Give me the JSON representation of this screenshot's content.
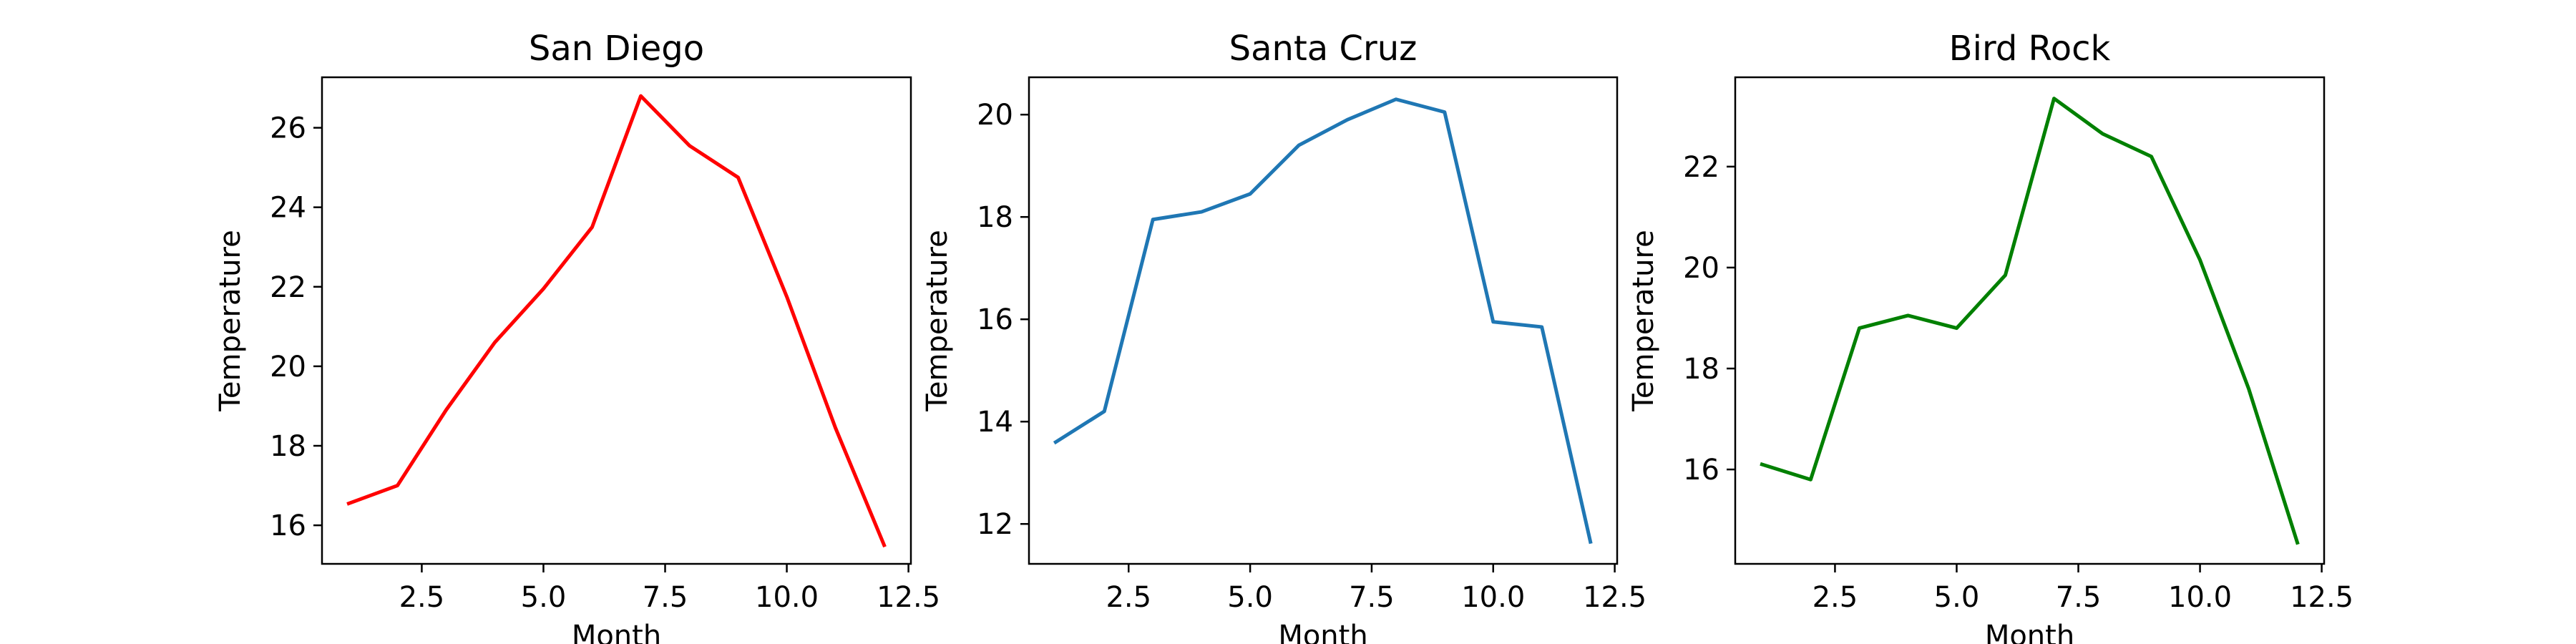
{
  "chart_data": [
    {
      "type": "line",
      "title": "San Diego",
      "xlabel": "Month",
      "ylabel": "Temperature",
      "x": [
        1,
        2,
        3,
        4,
        5,
        6,
        7,
        8,
        9,
        10,
        11,
        12
      ],
      "series": [
        {
          "values": [
            16.55,
            17.0,
            18.9,
            20.6,
            21.95,
            23.5,
            26.8,
            25.55,
            24.75,
            21.75,
            18.45,
            15.5
          ],
          "color": "#ff0000"
        }
      ],
      "xlim": [
        0.45,
        12.55
      ],
      "ylim": [
        15.03,
        27.27
      ],
      "xticks": [
        2.5,
        5.0,
        7.5,
        10.0,
        12.5
      ],
      "xtick_labels": [
        "2.5",
        "5.0",
        "7.5",
        "10.0",
        "12.5"
      ],
      "yticks": [
        16,
        18,
        20,
        22,
        24,
        26
      ],
      "ytick_labels": [
        "16",
        "18",
        "20",
        "22",
        "24",
        "26"
      ],
      "grid": false
    },
    {
      "type": "line",
      "title": "Santa Cruz",
      "xlabel": "Month",
      "ylabel": "Temperature",
      "x": [
        1,
        2,
        3,
        4,
        5,
        6,
        7,
        8,
        9,
        10,
        11,
        12
      ],
      "series": [
        {
          "values": [
            13.6,
            14.2,
            17.95,
            18.1,
            18.45,
            19.4,
            19.9,
            20.3,
            20.05,
            15.95,
            15.85,
            11.65
          ],
          "color": "#1f77b4"
        }
      ],
      "xlim": [
        0.45,
        12.55
      ],
      "ylim": [
        11.22,
        20.73
      ],
      "xticks": [
        2.5,
        5.0,
        7.5,
        10.0,
        12.5
      ],
      "xtick_labels": [
        "2.5",
        "5.0",
        "7.5",
        "10.0",
        "12.5"
      ],
      "yticks": [
        12,
        14,
        16,
        18,
        20
      ],
      "ytick_labels": [
        "12",
        "14",
        "16",
        "18",
        "20"
      ],
      "grid": false
    },
    {
      "type": "line",
      "title": "Bird Rock",
      "xlabel": "Month",
      "ylabel": "Temperature",
      "x": [
        1,
        2,
        3,
        4,
        5,
        6,
        7,
        8,
        9,
        10,
        11,
        12
      ],
      "series": [
        {
          "values": [
            16.1,
            15.8,
            18.8,
            19.05,
            18.8,
            19.85,
            23.35,
            22.65,
            22.2,
            20.15,
            17.6,
            14.55
          ],
          "color": "#008000"
        }
      ],
      "xlim": [
        0.45,
        12.55
      ],
      "ylim": [
        14.13,
        23.77
      ],
      "xticks": [
        2.5,
        5.0,
        7.5,
        10.0,
        12.5
      ],
      "xtick_labels": [
        "2.5",
        "5.0",
        "7.5",
        "10.0",
        "12.5"
      ],
      "yticks": [
        16,
        18,
        20,
        22
      ],
      "ytick_labels": [
        "16",
        "18",
        "20",
        "22"
      ],
      "grid": false
    }
  ]
}
